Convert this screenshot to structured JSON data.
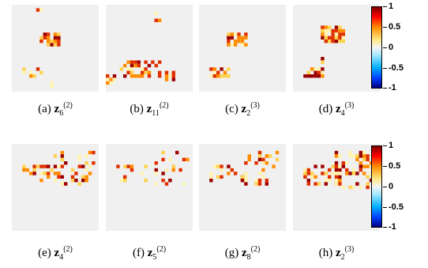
{
  "figure": {
    "top_row": {
      "panels": [
        {
          "id": "a",
          "letter": "(a)",
          "var": "z",
          "sub": "6",
          "sup": "(2)"
        },
        {
          "id": "b",
          "letter": "(b)",
          "var": "z",
          "sub": "11",
          "sup": "(2)"
        },
        {
          "id": "c",
          "letter": "(c)",
          "var": "z",
          "sub": "2",
          "sup": "(3)"
        },
        {
          "id": "d",
          "letter": "(d)",
          "var": "z",
          "sub": "4",
          "sup": "(3)"
        }
      ],
      "colorbar": {
        "ticks": [
          "1",
          "0.5",
          "0",
          "-0.5",
          "-1"
        ]
      }
    },
    "bottom_row": {
      "panels": [
        {
          "id": "e",
          "letter": "(e)",
          "var": "z",
          "sub": "4",
          "sup": "(2)"
        },
        {
          "id": "f",
          "letter": "(f)",
          "var": "z",
          "sub": "5",
          "sup": "(2)"
        },
        {
          "id": "g",
          "letter": "(g)",
          "var": "z",
          "sub": "8",
          "sup": "(2)"
        },
        {
          "id": "h",
          "letter": "(h)",
          "var": "z",
          "sub": "2",
          "sup": "(3)"
        }
      ],
      "colorbar": {
        "ticks": [
          "1",
          "0.5",
          "0",
          "-0.5",
          "-1"
        ]
      }
    },
    "colors": {
      "background_cell": "#f0f0f0",
      "cmap_positive": [
        "#fff3b0",
        "#ffd24d",
        "#ff8c00",
        "#e03000",
        "#9b0000"
      ],
      "cmap_negative": [
        "#9fe8ff",
        "#00b0ff",
        "#0040ff",
        "#000080"
      ]
    }
  }
}
